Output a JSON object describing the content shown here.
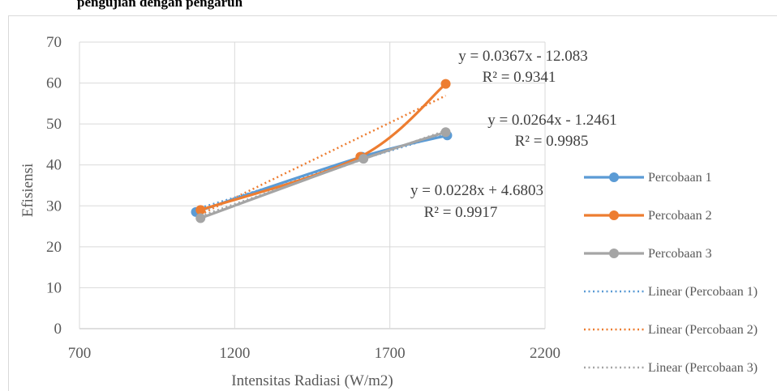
{
  "caption": "pengujian dengan pengaruh",
  "chart_data": {
    "type": "scatter",
    "title": "",
    "xlabel": "Intensitas Radiasi (W/m2)",
    "ylabel": "Efisiensi",
    "xlim": [
      700,
      2200
    ],
    "ylim": [
      0,
      70
    ],
    "xticks": [
      "700",
      "1200",
      "1700",
      "2200"
    ],
    "yticks": [
      "0",
      "10",
      "20",
      "30",
      "40",
      "50",
      "60",
      "70"
    ],
    "grid": true,
    "legend_position": "right",
    "series": [
      {
        "name": "Percobaan 1",
        "color": "#5b9bd5",
        "x": [
          1075,
          1610,
          1885
        ],
        "y": [
          28.5,
          42.0,
          47.2
        ]
      },
      {
        "name": "Percobaan 2",
        "color": "#ed7d31",
        "x": [
          1090,
          1605,
          1880
        ],
        "y": [
          29.0,
          42.0,
          59.8
        ]
      },
      {
        "name": "Percobaan 3",
        "color": "#a5a5a5",
        "x": [
          1090,
          1615,
          1880
        ],
        "y": [
          27.0,
          41.5,
          48.0
        ]
      }
    ],
    "trendlines": [
      {
        "name": "Linear (Percobaan 1)",
        "color": "#5b9bd5",
        "slope": 0.0228,
        "intercept": 4.6803,
        "x_range": [
          1075,
          1885
        ],
        "equation": "y = 0.0228x + 4.6803",
        "r2": "R² = 0.9917"
      },
      {
        "name": "Linear (Percobaan 2)",
        "color": "#ed7d31",
        "slope": 0.0367,
        "intercept": -12.083,
        "x_range": [
          1090,
          1880
        ],
        "equation": "y = 0.0367x - 12.083",
        "r2": "R² = 0.9341"
      },
      {
        "name": "Linear (Percobaan 3)",
        "color": "#a5a5a5",
        "slope": 0.0264,
        "intercept": -1.2461,
        "x_range": [
          1090,
          1880
        ],
        "equation": "y = 0.0264x - 1.2461",
        "r2": "R² = 0.9985"
      }
    ]
  }
}
